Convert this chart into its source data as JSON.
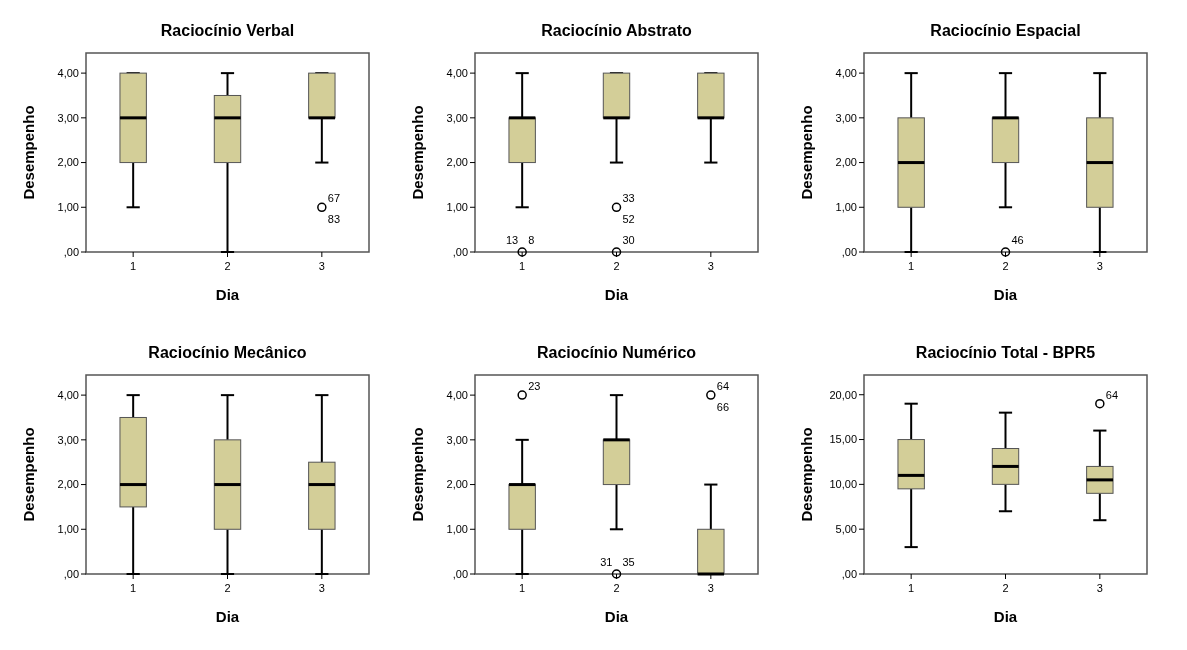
{
  "chart_data": [
    {
      "type": "box",
      "title": "Raciocínio Verbal",
      "xlabel": "Dia",
      "ylabel": "Desempenho",
      "categories": [
        "1",
        "2",
        "3"
      ],
      "ylim": [
        0,
        4.45
      ],
      "yticks": [
        {
          "value": 0,
          "label": ",00"
        },
        {
          "value": 1,
          "label": "1,00"
        },
        {
          "value": 2,
          "label": "2,00"
        },
        {
          "value": 3,
          "label": "3,00"
        },
        {
          "value": 4,
          "label": "4,00"
        }
      ],
      "marker": "circle",
      "series": [
        {
          "color": "#d3ce98",
          "boxes": [
            {
              "low": 1,
              "q1": 2,
              "median": 3,
              "q3": 4,
              "high": 4
            },
            {
              "low": 0,
              "q1": 2,
              "median": 3,
              "q3": 3.5,
              "high": 4
            },
            {
              "low": 2,
              "q1": 3,
              "median": 3,
              "q3": 4,
              "high": 4
            }
          ]
        },
        {
          "type": "scatter",
          "color": "#000000",
          "x": [
            "3"
          ],
          "values": [
            1
          ]
        }
      ],
      "annotations": [
        {
          "text": "67",
          "x": "3",
          "y": 1
        },
        {
          "text": "83",
          "x": "3",
          "y": 1
        }
      ]
    },
    {
      "type": "box",
      "title": "Raciocínio Abstrato",
      "xlabel": "Dia",
      "ylabel": "Desempenho",
      "categories": [
        "1",
        "2",
        "3"
      ],
      "ylim": [
        0,
        4.45
      ],
      "yticks": [
        {
          "value": 0,
          "label": ",00"
        },
        {
          "value": 1,
          "label": "1,00"
        },
        {
          "value": 2,
          "label": "2,00"
        },
        {
          "value": 3,
          "label": "3,00"
        },
        {
          "value": 4,
          "label": "4,00"
        }
      ],
      "marker": "circle",
      "series": [
        {
          "color": "#d3ce98",
          "boxes": [
            {
              "low": 1,
              "q1": 2,
              "median": 3,
              "q3": 3,
              "high": 4
            },
            {
              "low": 2,
              "q1": 3,
              "median": 3,
              "q3": 4,
              "high": 4
            },
            {
              "low": 2,
              "q1": 3,
              "median": 3,
              "q3": 4,
              "high": 4
            }
          ]
        },
        {
          "type": "scatter",
          "color": "#000000",
          "x": [
            "1",
            "2",
            "2"
          ],
          "values": [
            0,
            1,
            0
          ]
        }
      ],
      "annotations": [
        {
          "text": "13",
          "x": "1",
          "y": 0
        },
        {
          "text": "8",
          "x": "1",
          "y": 0
        },
        {
          "text": "33",
          "x": "2",
          "y": 1
        },
        {
          "text": "52",
          "x": "2",
          "y": 1
        },
        {
          "text": "30",
          "x": "2",
          "y": 0
        }
      ]
    },
    {
      "type": "box",
      "title": "Raciocínio Espacial",
      "xlabel": "Dia",
      "ylabel": "Desempenho",
      "categories": [
        "1",
        "2",
        "3"
      ],
      "ylim": [
        0,
        4.45
      ],
      "yticks": [
        {
          "value": 0,
          "label": ",00"
        },
        {
          "value": 1,
          "label": "1,00"
        },
        {
          "value": 2,
          "label": "2,00"
        },
        {
          "value": 3,
          "label": "3,00"
        },
        {
          "value": 4,
          "label": "4,00"
        }
      ],
      "marker": "circle",
      "series": [
        {
          "color": "#d3ce98",
          "boxes": [
            {
              "low": 0,
              "q1": 1,
              "median": 2,
              "q3": 3,
              "high": 4
            },
            {
              "low": 1,
              "q1": 2,
              "median": 3,
              "q3": 3,
              "high": 4
            },
            {
              "low": 0,
              "q1": 1,
              "median": 2,
              "q3": 3,
              "high": 4
            }
          ]
        },
        {
          "type": "scatter",
          "color": "#000000",
          "x": [
            "2"
          ],
          "values": [
            0
          ]
        }
      ],
      "annotations": [
        {
          "text": "46",
          "x": "2",
          "y": 0
        }
      ]
    },
    {
      "type": "box",
      "title": "Raciocínio Mecânico",
      "xlabel": "Dia",
      "ylabel": "Desempenho",
      "categories": [
        "1",
        "2",
        "3"
      ],
      "ylim": [
        0,
        4.45
      ],
      "yticks": [
        {
          "value": 0,
          "label": ",00"
        },
        {
          "value": 1,
          "label": "1,00"
        },
        {
          "value": 2,
          "label": "2,00"
        },
        {
          "value": 3,
          "label": "3,00"
        },
        {
          "value": 4,
          "label": "4,00"
        }
      ],
      "series": [
        {
          "color": "#d3ce98",
          "boxes": [
            {
              "low": 0,
              "q1": 1.5,
              "median": 2,
              "q3": 3.5,
              "high": 4
            },
            {
              "low": 0,
              "q1": 1,
              "median": 2,
              "q3": 3,
              "high": 4
            },
            {
              "low": 0,
              "q1": 1,
              "median": 2,
              "q3": 2.5,
              "high": 4
            }
          ]
        }
      ]
    },
    {
      "type": "box",
      "title": "Raciocínio Numérico",
      "xlabel": "Dia",
      "ylabel": "Desempenho",
      "categories": [
        "1",
        "2",
        "3"
      ],
      "ylim": [
        0,
        4.45
      ],
      "yticks": [
        {
          "value": 0,
          "label": ",00"
        },
        {
          "value": 1,
          "label": "1,00"
        },
        {
          "value": 2,
          "label": "2,00"
        },
        {
          "value": 3,
          "label": "3,00"
        },
        {
          "value": 4,
          "label": "4,00"
        }
      ],
      "marker": "circle",
      "series": [
        {
          "color": "#d3ce98",
          "boxes": [
            {
              "low": 0,
              "q1": 1,
              "median": 2,
              "q3": 2,
              "high": 3
            },
            {
              "low": 1,
              "q1": 2,
              "median": 3,
              "q3": 3,
              "high": 4
            },
            {
              "low": 0,
              "q1": 0,
              "median": 0,
              "q3": 1,
              "high": 2
            }
          ]
        },
        {
          "type": "scatter",
          "color": "#000000",
          "x": [
            "1",
            "2",
            "3"
          ],
          "values": [
            4,
            0,
            4
          ]
        }
      ],
      "annotations": [
        {
          "text": "23",
          "x": "1",
          "y": 4
        },
        {
          "text": "31",
          "x": "2",
          "y": 0
        },
        {
          "text": "35",
          "x": "2",
          "y": 0
        },
        {
          "text": "64",
          "x": "3",
          "y": 4
        },
        {
          "text": "66",
          "x": "3",
          "y": 4
        }
      ]
    },
    {
      "type": "box",
      "title": "Raciocínio Total - BPR5",
      "xlabel": "Dia",
      "ylabel": "Desempenho",
      "categories": [
        "1",
        "2",
        "3"
      ],
      "ylim": [
        0,
        22.2
      ],
      "yticks": [
        {
          "value": 0,
          "label": ",00"
        },
        {
          "value": 5,
          "label": "5,00"
        },
        {
          "value": 10,
          "label": "10,00"
        },
        {
          "value": 15,
          "label": "15,00"
        },
        {
          "value": 20,
          "label": "20,00"
        }
      ],
      "marker": "circle",
      "series": [
        {
          "color": "#d3ce98",
          "boxes": [
            {
              "low": 3,
              "q1": 9.5,
              "median": 11,
              "q3": 15,
              "high": 19
            },
            {
              "low": 7,
              "q1": 10,
              "median": 12,
              "q3": 14,
              "high": 18
            },
            {
              "low": 6,
              "q1": 9,
              "median": 10.5,
              "q3": 12,
              "high": 16
            }
          ]
        },
        {
          "type": "scatter",
          "color": "#000000",
          "x": [
            "3"
          ],
          "values": [
            19
          ]
        }
      ],
      "annotations": [
        {
          "text": "64",
          "x": "3",
          "y": 19
        }
      ]
    }
  ]
}
